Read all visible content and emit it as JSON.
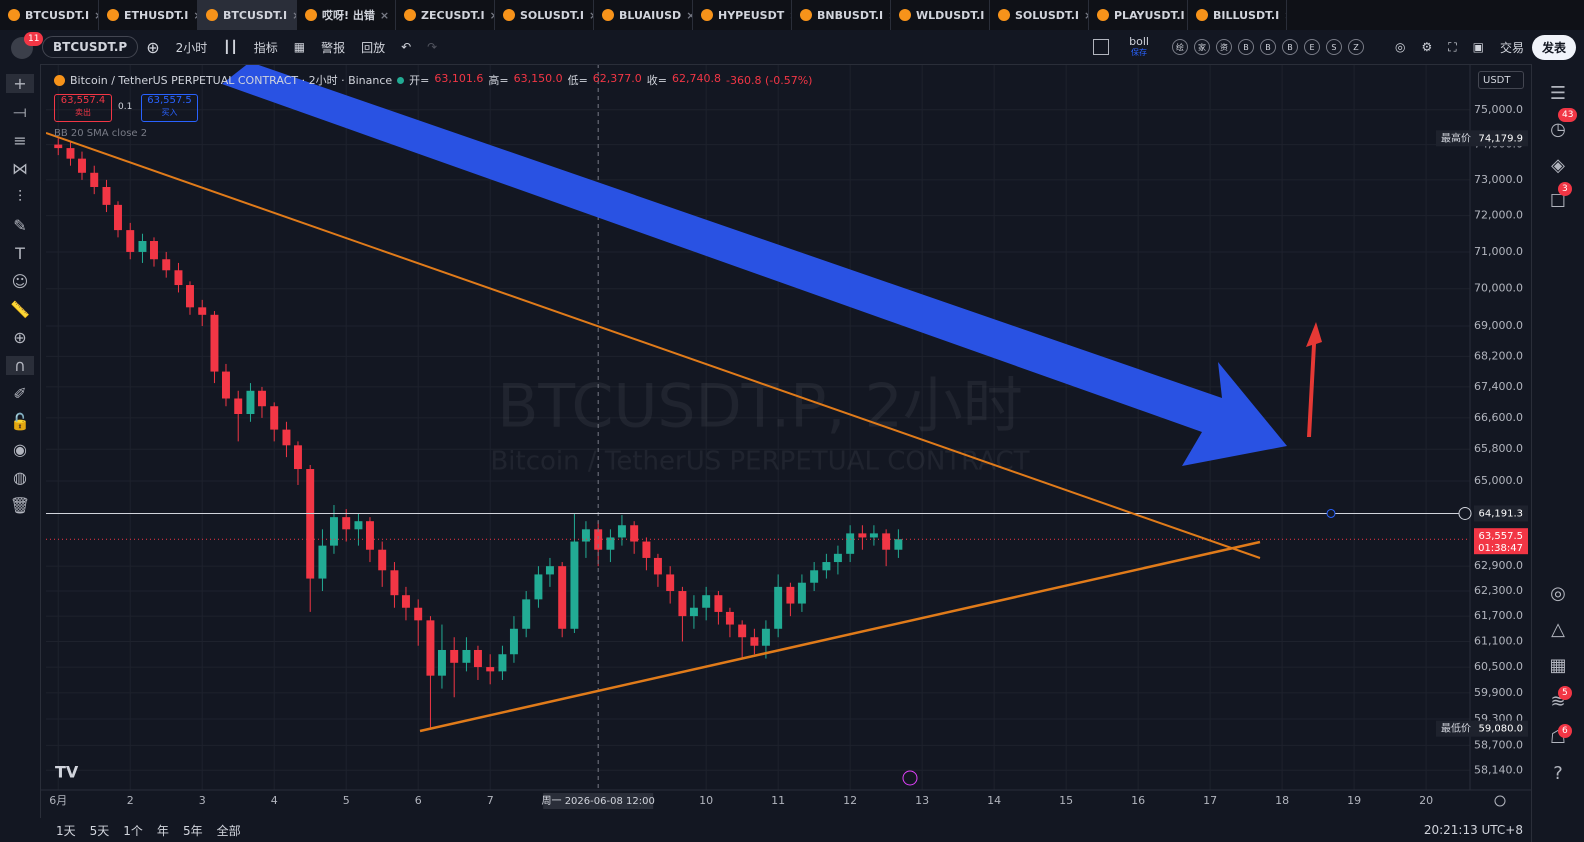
{
  "tabs": [
    "BTCUSDT.I",
    "ETHUSDT.I",
    "BTCUSDT.I",
    "哎呀! 出错",
    "ZECUSDT.I",
    "SOLUSDT.I",
    "BLUAIUSD",
    "HYPEUSDT",
    "BNBUSDT.I",
    "WLDUSDT.I",
    "SOLUSDT.I",
    "PLAYUSDT.I",
    "BILLUSDT.I"
  ],
  "active_tab": 2,
  "toolbar": {
    "badge": "11",
    "symbol": "BTCUSDT.P",
    "interval": "2小时",
    "indicators": "指标",
    "alert": "警报",
    "replay": "回放",
    "layout": "boll",
    "layout_status": "保存",
    "quick": [
      "绘",
      "家",
      "资",
      "B",
      "B",
      "B",
      "E",
      "S",
      "Z"
    ],
    "trade": "交易",
    "publish": "发表"
  },
  "right_badges": [
    "43",
    "3",
    "5",
    "6"
  ],
  "order_panel": {
    "sell_price": "63,557.4",
    "sell": "卖出",
    "qty": "0.1",
    "buy_price": "63,557.5",
    "buy": "买入"
  },
  "legend": {
    "title": "Bitcoin / TetherUS PERPETUAL CONTRACT · 2小时 · Binance",
    "ohlc": [
      {
        "label": "开=",
        "value": "63,101.6"
      },
      {
        "label": "高=",
        "value": "63,150.0"
      },
      {
        "label": "低=",
        "value": "62,377.0"
      },
      {
        "label": "收=",
        "value": "62,740.8"
      }
    ],
    "change": "-360.8 (-0.57%)",
    "indicator": "BB 20 SMA close 2"
  },
  "watermark": {
    "symbol": "BTCUSDT.P, 2小时",
    "description": "Bitcoin / TetherUS PERPETUAL CONTRACT"
  },
  "currency": "USDT",
  "bottom_bar": {
    "ranges": [
      "1天",
      "5天",
      "1个",
      "年",
      "5年",
      "全部"
    ],
    "clock": "20:21:13 UTC+8"
  },
  "chart_data": {
    "type": "candlestick",
    "log": true,
    "grid": true,
    "up_color": "#22ab94",
    "down_color": "#f23645",
    "xlim": [
      0.83,
      20.61
    ],
    "xticks": [
      {
        "value": 1,
        "label": "6月"
      },
      2,
      3,
      4,
      5,
      6,
      7,
      10,
      11,
      12,
      13,
      14,
      15,
      16,
      17,
      18,
      19,
      20
    ],
    "ylim": [
      57700,
      76100
    ],
    "yticks": [
      {
        "value": 75000,
        "label": "75,000.0"
      },
      {
        "value": 74000,
        "label": "74,000.0"
      },
      {
        "value": 73000,
        "label": "73,000.0"
      },
      {
        "value": 72000,
        "label": "72,000.0"
      },
      {
        "value": 71000,
        "label": "71,000.0"
      },
      {
        "value": 70000,
        "label": "70,000.0"
      },
      {
        "value": 69000,
        "label": "69,000.0"
      },
      {
        "value": 68200,
        "label": "68,200.0"
      },
      {
        "value": 67400,
        "label": "67,400.0"
      },
      {
        "value": 66600,
        "label": "66,600.0"
      },
      {
        "value": 65800,
        "label": "65,800.0"
      },
      {
        "value": 65000,
        "label": "65,000.0"
      },
      {
        "value": 62900,
        "label": "62,900.0"
      },
      {
        "value": 62300,
        "label": "62,300.0"
      },
      {
        "value": 61700,
        "label": "61,700.0"
      },
      {
        "value": 61100,
        "label": "61,100.0"
      },
      {
        "value": 60500,
        "label": "60,500.0"
      },
      {
        "value": 59900,
        "label": "59,900.0"
      },
      {
        "value": 59300,
        "label": "59,300.0"
      },
      {
        "value": 58700,
        "label": "58,700.0"
      },
      {
        "value": 58140,
        "label": "58,140.0"
      }
    ],
    "x": [
      1,
      1.17,
      1.33,
      1.5,
      1.67,
      1.83,
      2,
      2.17,
      2.33,
      2.5,
      2.67,
      2.83,
      3,
      3.17,
      3.33,
      3.5,
      3.67,
      3.83,
      4,
      4.17,
      4.33,
      4.5,
      4.67,
      4.83,
      5,
      5.17,
      5.33,
      5.5,
      5.67,
      5.83,
      6,
      6.17,
      6.33,
      6.5,
      6.67,
      6.83,
      7,
      7.17,
      7.33,
      7.5,
      7.67,
      7.83,
      8,
      8.17,
      8.33,
      8.5,
      8.67,
      8.83,
      9,
      9.17,
      9.33,
      9.5,
      9.67,
      9.83,
      10,
      10.17,
      10.33,
      10.5,
      10.67,
      10.83,
      11,
      11.17,
      11.33,
      11.5,
      11.67,
      11.83,
      12,
      12.17,
      12.33,
      12.5,
      12.67
    ],
    "open": [
      74000,
      73900,
      73600,
      73200,
      72800,
      72300,
      71600,
      71000,
      71300,
      70800,
      70500,
      70100,
      69500,
      69300,
      67800,
      67100,
      66700,
      67300,
      66900,
      66300,
      65900,
      65300,
      62600,
      63400,
      64100,
      63800,
      64000,
      63300,
      62800,
      62200,
      61900,
      61600,
      60300,
      60900,
      60600,
      60900,
      60500,
      60400,
      60800,
      61400,
      62100,
      62700,
      62900,
      61400,
      63500,
      63800,
      63300,
      63600,
      63900,
      63500,
      63100,
      62700,
      62300,
      61700,
      61900,
      62200,
      61800,
      61500,
      61200,
      61000,
      61400,
      62400,
      62000,
      62500,
      62800,
      63000,
      63200,
      63700,
      63600,
      63700,
      63300
    ],
    "high": [
      74179.9,
      74100,
      73800,
      73400,
      73000,
      72400,
      71800,
      71500,
      71400,
      71000,
      70700,
      70200,
      69700,
      69400,
      68000,
      67300,
      67500,
      67400,
      67000,
      66500,
      66000,
      65400,
      63800,
      64400,
      64300,
      64200,
      64100,
      63500,
      63000,
      62400,
      62100,
      61700,
      61500,
      61200,
      61200,
      61000,
      60800,
      61000,
      61700,
      62300,
      62900,
      63100,
      63000,
      64190,
      64000,
      64000,
      63800,
      64150,
      64000,
      63600,
      63200,
      62900,
      62400,
      62200,
      62400,
      62300,
      61900,
      61600,
      61400,
      61600,
      62700,
      62500,
      62700,
      63000,
      63200,
      63400,
      63900,
      63900,
      63900,
      63800,
      63800
    ],
    "low": [
      73700,
      73400,
      73000,
      72600,
      72100,
      71400,
      70800,
      70700,
      70600,
      70300,
      69900,
      69300,
      69000,
      67500,
      66900,
      66000,
      66500,
      66600,
      66000,
      65600,
      64900,
      61800,
      62300,
      63200,
      63500,
      63400,
      63000,
      62400,
      61900,
      61600,
      61000,
      59080,
      60000,
      59800,
      60400,
      60200,
      60100,
      60200,
      60600,
      61200,
      61900,
      62400,
      61200,
      61300,
      63100,
      62900,
      63000,
      63400,
      63200,
      62800,
      62400,
      62000,
      61100,
      61400,
      61600,
      61500,
      61200,
      60700,
      60800,
      60700,
      61200,
      61700,
      61800,
      62300,
      62600,
      62700,
      63000,
      63300,
      63400,
      62900,
      63100
    ],
    "close": [
      73900,
      73600,
      73200,
      72800,
      72300,
      71600,
      71000,
      71300,
      70800,
      70500,
      70100,
      69500,
      69300,
      67800,
      67100,
      66700,
      67300,
      66900,
      66300,
      65900,
      65300,
      62600,
      63400,
      64100,
      63800,
      64000,
      63300,
      62800,
      62200,
      61900,
      61600,
      60300,
      60900,
      60600,
      60900,
      60500,
      60400,
      60800,
      61400,
      62100,
      62700,
      62900,
      61400,
      63500,
      63800,
      63300,
      63600,
      63900,
      63500,
      63100,
      62700,
      62300,
      61700,
      61900,
      62200,
      61800,
      61500,
      61200,
      61000,
      61400,
      62400,
      62000,
      62500,
      62800,
      63000,
      63200,
      63700,
      63600,
      63700,
      63300,
      63557.5
    ],
    "price_labels": [
      {
        "name": "最高价",
        "value": 74179.9,
        "label": "74,179.9"
      },
      {
        "name": "最低价",
        "value": 59080,
        "label": "59,080.0"
      }
    ],
    "hline": {
      "value": 64191.3,
      "label": "64,191.3"
    },
    "last_price": {
      "value": 63557.5,
      "label": "63,557.5",
      "countdown": "01:38:47"
    },
    "crosshair": {
      "x": 8.5,
      "label": "周一 2026-06-08   12:00"
    }
  }
}
